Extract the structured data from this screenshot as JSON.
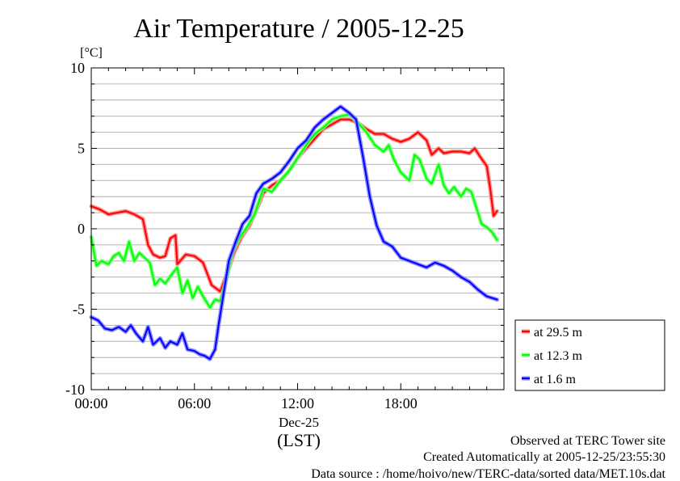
{
  "chart_data": {
    "type": "line",
    "title": "Air Temperature / 2005-12-25",
    "ylabel": "[°C]",
    "xlabel": "(LST)",
    "x_date_label": "Dec-25",
    "ylim": [
      -10,
      10
    ],
    "y_ticks": [
      10,
      5,
      0,
      -5,
      -10
    ],
    "y_tick_labels": [
      "10",
      "5",
      "0",
      "-5",
      "-10"
    ],
    "xlim": [
      0,
      24
    ],
    "x_ticks": [
      0,
      6,
      12,
      18
    ],
    "x_tick_labels": [
      "00:00",
      "06:00",
      "12:00",
      "18:00"
    ],
    "grid": true,
    "legend_position": "right",
    "series": [
      {
        "name": "at 29.5 m",
        "color": "#ff0000",
        "points": [
          [
            0,
            1.4
          ],
          [
            0.5,
            1.2
          ],
          [
            1,
            0.9
          ],
          [
            1.5,
            1.0
          ],
          [
            2,
            1.1
          ],
          [
            2.5,
            0.9
          ],
          [
            3,
            0.6
          ],
          [
            3.3,
            -1.0
          ],
          [
            3.6,
            -1.6
          ],
          [
            4,
            -1.8
          ],
          [
            4.3,
            -1.7
          ],
          [
            4.6,
            -0.6
          ],
          [
            4.9,
            -0.4
          ],
          [
            5.0,
            -2.2
          ],
          [
            5.5,
            -1.6
          ],
          [
            6,
            -1.7
          ],
          [
            6.5,
            -2.1
          ],
          [
            7,
            -3.5
          ],
          [
            7.5,
            -3.9
          ],
          [
            7.9,
            -2.8
          ],
          [
            8.3,
            -1.5
          ],
          [
            8.7,
            -0.6
          ],
          [
            9.2,
            0.2
          ],
          [
            9.7,
            1.4
          ],
          [
            10,
            2.2
          ],
          [
            10.5,
            2.7
          ],
          [
            11,
            3.0
          ],
          [
            11.5,
            3.6
          ],
          [
            12,
            4.4
          ],
          [
            12.5,
            5.0
          ],
          [
            13,
            5.6
          ],
          [
            13.5,
            6.2
          ],
          [
            14,
            6.5
          ],
          [
            14.5,
            6.8
          ],
          [
            15,
            6.8
          ],
          [
            15.5,
            6.6
          ],
          [
            16,
            6.2
          ],
          [
            16.5,
            5.9
          ],
          [
            17,
            5.9
          ],
          [
            17.5,
            5.6
          ],
          [
            18,
            5.4
          ],
          [
            18.5,
            5.6
          ],
          [
            19,
            6.0
          ],
          [
            19.5,
            5.5
          ],
          [
            19.8,
            4.6
          ],
          [
            20.2,
            5.0
          ],
          [
            20.5,
            4.7
          ],
          [
            21,
            4.8
          ],
          [
            21.5,
            4.8
          ],
          [
            22,
            4.7
          ],
          [
            22.3,
            5.0
          ],
          [
            22.6,
            4.5
          ],
          [
            23,
            3.9
          ],
          [
            23.2,
            2.5
          ],
          [
            23.4,
            0.8
          ],
          [
            23.6,
            1.1
          ]
        ]
      },
      {
        "name": "at 12.3 m",
        "color": "#00ff00",
        "points": [
          [
            0,
            -0.5
          ],
          [
            0.3,
            -2.3
          ],
          [
            0.6,
            -2.0
          ],
          [
            1,
            -2.2
          ],
          [
            1.3,
            -1.7
          ],
          [
            1.6,
            -1.5
          ],
          [
            1.9,
            -2.0
          ],
          [
            2.2,
            -0.8
          ],
          [
            2.5,
            -2.0
          ],
          [
            2.8,
            -1.5
          ],
          [
            3.1,
            -1.8
          ],
          [
            3.4,
            -2.1
          ],
          [
            3.7,
            -3.5
          ],
          [
            4,
            -3.1
          ],
          [
            4.3,
            -3.4
          ],
          [
            4.7,
            -2.8
          ],
          [
            5,
            -2.4
          ],
          [
            5.3,
            -4.0
          ],
          [
            5.6,
            -3.2
          ],
          [
            5.9,
            -4.3
          ],
          [
            6.2,
            -3.6
          ],
          [
            6.5,
            -4.2
          ],
          [
            6.9,
            -4.9
          ],
          [
            7.2,
            -4.4
          ],
          [
            7.5,
            -4.5
          ],
          [
            7.9,
            -3.0
          ],
          [
            8.2,
            -1.5
          ],
          [
            8.6,
            -0.6
          ],
          [
            9,
            0.0
          ],
          [
            9.5,
            0.9
          ],
          [
            10,
            2.5
          ],
          [
            10.5,
            2.3
          ],
          [
            11,
            3.0
          ],
          [
            11.5,
            3.6
          ],
          [
            12,
            4.4
          ],
          [
            12.5,
            5.2
          ],
          [
            13,
            5.9
          ],
          [
            13.5,
            6.3
          ],
          [
            14,
            6.8
          ],
          [
            14.5,
            7.0
          ],
          [
            15,
            7.1
          ],
          [
            15.5,
            6.6
          ],
          [
            16,
            6.0
          ],
          [
            16.5,
            5.2
          ],
          [
            17,
            4.8
          ],
          [
            17.3,
            5.2
          ],
          [
            17.6,
            4.3
          ],
          [
            18,
            3.5
          ],
          [
            18.5,
            3.0
          ],
          [
            18.8,
            4.6
          ],
          [
            19.1,
            4.3
          ],
          [
            19.5,
            3.1
          ],
          [
            19.8,
            2.8
          ],
          [
            20.2,
            4.0
          ],
          [
            20.5,
            2.7
          ],
          [
            20.8,
            2.2
          ],
          [
            21.1,
            2.6
          ],
          [
            21.5,
            2.0
          ],
          [
            21.8,
            2.5
          ],
          [
            22.1,
            2.3
          ],
          [
            22.4,
            1.3
          ],
          [
            22.7,
            0.3
          ],
          [
            23,
            0.1
          ],
          [
            23.3,
            -0.2
          ],
          [
            23.6,
            -0.7
          ]
        ]
      },
      {
        "name": "at 1.6 m",
        "color": "#0000ff",
        "points": [
          [
            0,
            -5.5
          ],
          [
            0.4,
            -5.7
          ],
          [
            0.8,
            -6.2
          ],
          [
            1.2,
            -6.3
          ],
          [
            1.6,
            -6.1
          ],
          [
            2,
            -6.4
          ],
          [
            2.3,
            -6.0
          ],
          [
            2.6,
            -6.5
          ],
          [
            3,
            -7.0
          ],
          [
            3.3,
            -6.1
          ],
          [
            3.6,
            -7.2
          ],
          [
            4,
            -6.8
          ],
          [
            4.3,
            -7.4
          ],
          [
            4.6,
            -7.0
          ],
          [
            5,
            -7.2
          ],
          [
            5.3,
            -6.5
          ],
          [
            5.6,
            -7.5
          ],
          [
            6,
            -7.6
          ],
          [
            6.3,
            -7.8
          ],
          [
            6.6,
            -7.9
          ],
          [
            6.9,
            -8.1
          ],
          [
            7.2,
            -7.5
          ],
          [
            7.4,
            -6.0
          ],
          [
            7.7,
            -4.0
          ],
          [
            8,
            -2.0
          ],
          [
            8.4,
            -0.8
          ],
          [
            8.8,
            0.3
          ],
          [
            9.2,
            0.8
          ],
          [
            9.6,
            2.2
          ],
          [
            10,
            2.8
          ],
          [
            10.5,
            3.1
          ],
          [
            11,
            3.5
          ],
          [
            11.5,
            4.2
          ],
          [
            12,
            5.0
          ],
          [
            12.5,
            5.5
          ],
          [
            13,
            6.3
          ],
          [
            13.5,
            6.8
          ],
          [
            14,
            7.2
          ],
          [
            14.5,
            7.6
          ],
          [
            15,
            7.2
          ],
          [
            15.4,
            6.8
          ],
          [
            15.8,
            4.5
          ],
          [
            16.2,
            2.0
          ],
          [
            16.6,
            0.2
          ],
          [
            17,
            -0.8
          ],
          [
            17.5,
            -1.1
          ],
          [
            18,
            -1.8
          ],
          [
            18.5,
            -2.0
          ],
          [
            19,
            -2.2
          ],
          [
            19.5,
            -2.4
          ],
          [
            20,
            -2.1
          ],
          [
            20.5,
            -2.3
          ],
          [
            21,
            -2.6
          ],
          [
            21.5,
            -3.0
          ],
          [
            22,
            -3.3
          ],
          [
            22.5,
            -3.8
          ],
          [
            23,
            -4.2
          ],
          [
            23.3,
            -4.3
          ],
          [
            23.6,
            -4.4
          ]
        ]
      }
    ]
  },
  "footer": {
    "line1": "Observed at TERC Tower site",
    "line2": "Created Automatically at 2005-12-25/23:55:30",
    "line3": "Data source : /home/hoivo/new/TERC-data/sorted  data/MET.10s.dat"
  }
}
